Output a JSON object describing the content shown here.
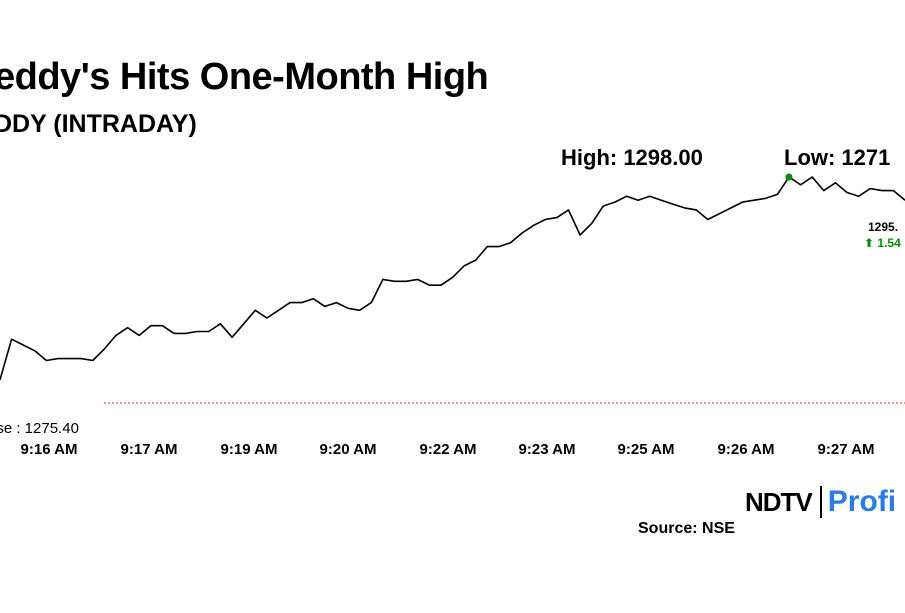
{
  "title": "eddy's Hits One-Month High",
  "subtitle": "DDY (INTRADAY)",
  "high_label": "High: 1298.00",
  "low_label": "Low: 1271",
  "prev_close_label": "ose : 1275.40",
  "last_price_label": "1295.",
  "last_change_label": "⬆ 1.54",
  "logo": {
    "left": "NDTV",
    "right": "Profi"
  },
  "source": "Source: NSE",
  "colors": {
    "line": "#000000",
    "prev_close_line": "#e03030",
    "high_marker": "#0a8a0a",
    "change_up": "#0a8a0a",
    "brand_blue": "#2a7be4"
  },
  "chart_data": {
    "type": "line",
    "prev_close": 1275.4,
    "high": 1298.0,
    "x_tick_labels": [
      "9:16 AM",
      "9:17 AM",
      "9:19 AM",
      "9:20 AM",
      "9:22 AM",
      "9:23 AM",
      "9:25 AM",
      "9:26 AM",
      "9:27 AM"
    ],
    "series": [
      {
        "values": [
          1276.6,
          1278.7,
          1278.4,
          1278.1,
          1277.6,
          1277.7,
          1277.7,
          1277.7,
          1277.6,
          1278.2,
          1278.9,
          1279.3,
          1278.9,
          1279.4,
          1279.4,
          1279.0,
          1279.0,
          1279.1,
          1279.1,
          1279.5,
          1278.8,
          1279.5,
          1280.2,
          1279.8,
          1280.2,
          1280.6,
          1280.6,
          1280.8,
          1280.4,
          1280.6,
          1280.3,
          1280.2,
          1280.6,
          1281.8,
          1281.7,
          1281.7,
          1281.8,
          1281.5,
          1281.5,
          1281.9,
          1282.5,
          1282.8,
          1283.5,
          1283.5,
          1283.7,
          1284.2,
          1284.6,
          1284.9,
          1285.0,
          1285.4,
          1284.1,
          1284.7,
          1285.6,
          1285.8,
          1286.1,
          1285.9,
          1286.1,
          1285.9,
          1285.7,
          1285.5,
          1285.4,
          1284.9,
          1285.2,
          1285.5,
          1285.8,
          1285.9,
          1286.0,
          1286.2,
          1287.1,
          1286.7,
          1287.1,
          1286.4,
          1286.8,
          1286.3,
          1286.1,
          1286.5,
          1286.4,
          1286.4,
          1285.9
        ]
      }
    ],
    "ylim": [
      1274,
      1288.5
    ],
    "grid": false,
    "legend": "none"
  }
}
